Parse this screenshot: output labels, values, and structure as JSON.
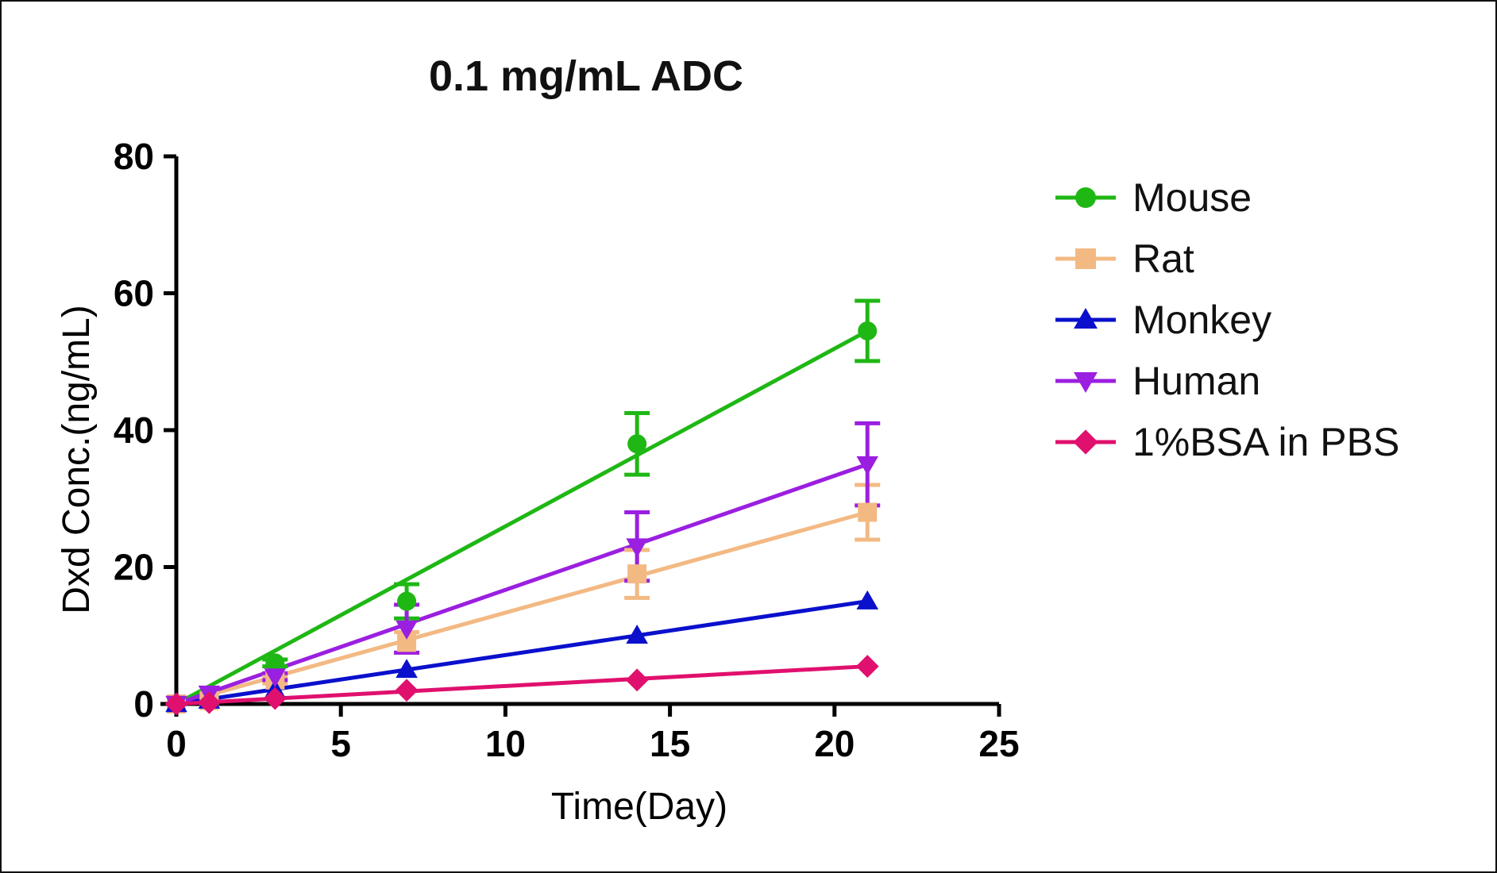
{
  "chart_data": {
    "type": "line",
    "title": "0.1 mg/mL ADC",
    "xlabel": "Time(Day)",
    "ylabel": "Dxd Conc.(ng/mL)",
    "xlim": [
      0,
      25
    ],
    "ylim": [
      0,
      80
    ],
    "x_ticks": [
      "0",
      "5",
      "10",
      "15",
      "20",
      "25"
    ],
    "y_ticks": [
      "0",
      "20",
      "40",
      "60",
      "80"
    ],
    "x_tick_values": [
      0,
      5,
      10,
      15,
      20,
      25
    ],
    "y_tick_values": [
      0,
      20,
      40,
      60,
      80
    ],
    "legend_position": "right",
    "series": [
      {
        "name": "Mouse",
        "color": "#1fb714",
        "marker": "circle",
        "x": [
          0,
          3,
          7,
          14,
          21
        ],
        "values": [
          0,
          6,
          15,
          38,
          54.5
        ],
        "error": [
          0,
          0.5,
          2.5,
          4.5,
          4.4
        ],
        "trend": [
          [
            0,
            0
          ],
          [
            21,
            54.5
          ]
        ]
      },
      {
        "name": "Rat",
        "color": "#f3b983",
        "marker": "square",
        "x": [
          0,
          1,
          3,
          7,
          14,
          21
        ],
        "values": [
          0,
          0.5,
          3.5,
          9,
          19,
          28
        ],
        "error": [
          0,
          0,
          0.5,
          1.5,
          3.5,
          4
        ],
        "trend": [
          [
            0,
            0
          ],
          [
            21,
            28
          ]
        ]
      },
      {
        "name": "Monkey",
        "color": "#0a10cc",
        "marker": "triangle-up",
        "x": [
          0,
          1,
          3,
          7,
          14,
          21
        ],
        "values": [
          0,
          0.5,
          2,
          5,
          10,
          15
        ],
        "error": [
          0,
          0,
          0,
          0,
          0,
          0
        ],
        "trend": [
          [
            0,
            0
          ],
          [
            21,
            15
          ]
        ]
      },
      {
        "name": "Human",
        "color": "#9b1fe0",
        "marker": "triangle-down",
        "x": [
          0,
          1,
          3,
          7,
          14,
          21
        ],
        "values": [
          0,
          1.5,
          4,
          11,
          23,
          35
        ],
        "error": [
          0,
          0,
          0.5,
          3.5,
          5,
          6
        ],
        "trend": [
          [
            0,
            0
          ],
          [
            21,
            35
          ]
        ]
      },
      {
        "name": "1%BSA in PBS",
        "color": "#e0106e",
        "marker": "diamond",
        "x": [
          0,
          1,
          3,
          7,
          14,
          21
        ],
        "values": [
          0,
          0.2,
          0.8,
          2,
          3.5,
          5.5
        ],
        "error": [
          0,
          0,
          0,
          0,
          0,
          0
        ],
        "trend": [
          [
            0,
            0
          ],
          [
            21,
            5.5
          ]
        ]
      }
    ]
  }
}
